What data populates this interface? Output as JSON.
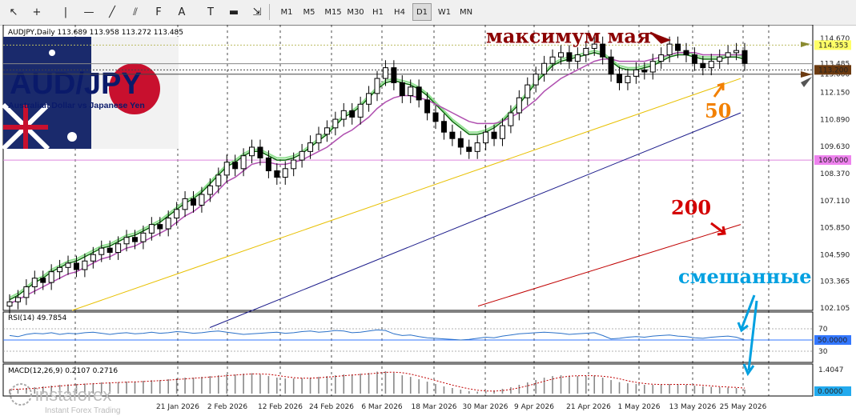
{
  "toolbar": {
    "tools": [
      "cursor-icon",
      "crosshair-icon",
      "vertical-line-icon",
      "horizontal-line-icon",
      "trendline-icon",
      "channel-icon",
      "fibonacci-icon",
      "text-icon",
      "text-label-icon",
      "rectangle-icon",
      "arrows-icon"
    ],
    "text_tool": "A",
    "label_tool": "T",
    "timeframes": [
      "M1",
      "M5",
      "M15",
      "M30",
      "H1",
      "H4",
      "D1",
      "W1",
      "MN"
    ],
    "active_timeframe": "D1"
  },
  "chart_data": {
    "type": "candlestick",
    "symbol_header": "AUDJPY,Daily  113.689 113.958 113.272 113.485",
    "logo": {
      "title": "AUD/JPY",
      "subtitle": "Australian Dollar vs Japanese Yen"
    },
    "price_axis": {
      "ticks": [
        "114.670",
        "113.485",
        "113.200",
        "113.000",
        "112.150",
        "110.890",
        "109.630",
        "109.000",
        "108.370",
        "107.110",
        "105.850",
        "104.590",
        "103.365",
        "102.105"
      ],
      "ylim": [
        102.0,
        115.0
      ],
      "highlighted": [
        {
          "label": "114.353",
          "value": 114.353,
          "color": "#ffff66"
        },
        {
          "label": "113.200",
          "value": 113.2,
          "color": "#6b3a10"
        },
        {
          "label": "109.000",
          "value": 109.0,
          "color": "#ee82ee"
        }
      ]
    },
    "date_axis": [
      "21 Jan 2026",
      "2 Feb 2026",
      "12 Feb 2026",
      "24 Feb 2026",
      "6 Mar 2026",
      "18 Mar 2026",
      "30 Mar 2026",
      "9 Apr 2026",
      "21 Apr 2026",
      "1 May 2026",
      "13 May 2026",
      "25 May 2026"
    ],
    "horizontal_levels": [
      {
        "value": 114.353,
        "color": "#bcbc60",
        "style": "dotted"
      },
      {
        "value": 113.485,
        "color": "#888888",
        "style": "solid"
      },
      {
        "value": 113.2,
        "color": "#444444",
        "style": "dotted"
      },
      {
        "value": 113.0,
        "color": "#444444",
        "style": "solid"
      },
      {
        "value": 109.0,
        "color": "#dd88dd",
        "style": "solid"
      }
    ],
    "series": [
      {
        "name": "close",
        "kind": "candles",
        "values": [
          102.4,
          102.6,
          103.1,
          103.5,
          103.3,
          103.8,
          104.0,
          104.2,
          103.9,
          104.3,
          104.6,
          104.9,
          104.7,
          105.1,
          105.4,
          105.2,
          105.6,
          106.0,
          105.8,
          106.3,
          106.7,
          107.2,
          106.9,
          107.4,
          107.8,
          108.3,
          108.9,
          108.6,
          109.2,
          109.6,
          109.1,
          108.5,
          108.2,
          108.6,
          109.0,
          109.4,
          109.8,
          110.2,
          110.5,
          110.9,
          111.3,
          111.0,
          111.6,
          112.1,
          112.8,
          113.3,
          112.6,
          112.0,
          112.4,
          111.8,
          111.2,
          110.8,
          110.3,
          110.0,
          109.6,
          109.4,
          109.8,
          110.3,
          110.0,
          110.6,
          111.2,
          111.9,
          112.5,
          113.0,
          113.5,
          113.8,
          114.0,
          113.6,
          113.9,
          114.2,
          114.4,
          113.8,
          113.0,
          112.6,
          112.9,
          113.2,
          113.1,
          113.6,
          113.9,
          114.4,
          114.1,
          113.9,
          113.5,
          113.3,
          113.6,
          113.8,
          114.0,
          114.1,
          113.5
        ]
      },
      {
        "name": "ema_fast",
        "kind": "line",
        "color": "#0a6b0a",
        "values": [
          102.5,
          102.7,
          103.0,
          103.3,
          103.5,
          103.8,
          104.0,
          104.2,
          104.3,
          104.5,
          104.7,
          104.9,
          105.0,
          105.2,
          105.4,
          105.5,
          105.7,
          105.9,
          106.1,
          106.4,
          106.7,
          107.0,
          107.2,
          107.5,
          107.9,
          108.3,
          108.7,
          108.9,
          109.2,
          109.4,
          109.4,
          109.2,
          109.0,
          109.0,
          109.1,
          109.3,
          109.6,
          109.9,
          110.2,
          110.6,
          111.0,
          111.2,
          111.5,
          111.9,
          112.3,
          112.6,
          112.7,
          112.6,
          112.5,
          112.3,
          112.0,
          111.6,
          111.2,
          110.8,
          110.5,
          110.2,
          110.2,
          110.3,
          110.5,
          110.8,
          111.2,
          111.6,
          112.1,
          112.6,
          113.0,
          113.4,
          113.6,
          113.7,
          113.8,
          113.9,
          114.0,
          113.9,
          113.6,
          113.3,
          113.2,
          113.2,
          113.3,
          113.4,
          113.6,
          113.8,
          113.9,
          113.9,
          113.8,
          113.7,
          113.7,
          113.7,
          113.8,
          113.8,
          113.7
        ]
      },
      {
        "name": "ema_light",
        "kind": "line",
        "color": "#90e090",
        "values": [
          102.6,
          102.8,
          103.1,
          103.4,
          103.6,
          103.9,
          104.1,
          104.3,
          104.4,
          104.6,
          104.8,
          105.0,
          105.1,
          105.3,
          105.5,
          105.6,
          105.8,
          106.0,
          106.2,
          106.5,
          106.8,
          107.1,
          107.3,
          107.6,
          108.0,
          108.4,
          108.8,
          109.0,
          109.3,
          109.5,
          109.5,
          109.3,
          109.1,
          109.1,
          109.2,
          109.4,
          109.7,
          110.0,
          110.3,
          110.7,
          111.1,
          111.3,
          111.6,
          112.0,
          112.4,
          112.7,
          112.8,
          112.7,
          112.6,
          112.4,
          112.1,
          111.7,
          111.3,
          110.9,
          110.6,
          110.3,
          110.3,
          110.4,
          110.6,
          110.9,
          111.3,
          111.7,
          112.2,
          112.7,
          113.1,
          113.5,
          113.7,
          113.8,
          113.9,
          114.0,
          114.1,
          114.0,
          113.7,
          113.4,
          113.3,
          113.3,
          113.4,
          113.5,
          113.7,
          113.9,
          114.0,
          114.0,
          113.9,
          113.8,
          113.8,
          113.8,
          113.9,
          113.9,
          113.8
        ]
      },
      {
        "name": "ema_purple",
        "kind": "line",
        "color": "#b050b0",
        "values": [
          102.3,
          102.5,
          102.7,
          102.9,
          103.1,
          103.3,
          103.5,
          103.7,
          103.8,
          104.0,
          104.2,
          104.4,
          104.5,
          104.7,
          104.9,
          105.0,
          105.2,
          105.4,
          105.6,
          105.8,
          106.1,
          106.4,
          106.6,
          106.9,
          107.2,
          107.6,
          108.0,
          108.2,
          108.5,
          108.8,
          108.9,
          108.9,
          108.8,
          108.8,
          108.9,
          109.0,
          109.2,
          109.4,
          109.6,
          109.9,
          110.2,
          110.4,
          110.7,
          111.0,
          111.4,
          111.7,
          111.9,
          112.0,
          112.0,
          111.9,
          111.8,
          111.6,
          111.4,
          111.2,
          111.0,
          110.8,
          110.7,
          110.7,
          110.7,
          110.8,
          111.0,
          111.2,
          111.5,
          111.8,
          112.2,
          112.5,
          112.8,
          113.0,
          113.2,
          113.4,
          113.6,
          113.7,
          113.7,
          113.6,
          113.6,
          113.6,
          113.6,
          113.7,
          113.8,
          113.9,
          114.0,
          114.0,
          114.0,
          113.9,
          113.9,
          113.9,
          113.9,
          113.9,
          113.9
        ]
      },
      {
        "name": "ma50",
        "kind": "line",
        "color": "#e8c000",
        "start": 102.0,
        "end": 112.8
      },
      {
        "name": "ma_blue",
        "kind": "line",
        "color": "#1a1a8a",
        "start": 101.2,
        "end": 111.2
      },
      {
        "name": "ma200",
        "kind": "line",
        "color": "#c00000",
        "start": 102.2,
        "end": 106.0
      }
    ],
    "rsi": {
      "label": "RSI(14) 49.7854",
      "value": 50.0,
      "value_label": "50.0000",
      "levels": [
        "70",
        "50",
        "30"
      ],
      "values": [
        58,
        56,
        60,
        62,
        61,
        63,
        60,
        62,
        61,
        63,
        64,
        62,
        60,
        62,
        63,
        61,
        62,
        64,
        62,
        63,
        65,
        64,
        62,
        63,
        65,
        66,
        64,
        62,
        60,
        61,
        62,
        63,
        64,
        62,
        63,
        65,
        66,
        64,
        65,
        67,
        66,
        63,
        64,
        66,
        68,
        67,
        61,
        58,
        59,
        56,
        54,
        53,
        52,
        51,
        50,
        51,
        53,
        55,
        54,
        57,
        59,
        61,
        62,
        63,
        64,
        63,
        62,
        60,
        61,
        62,
        63,
        58,
        52,
        53,
        55,
        56,
        55,
        57,
        58,
        59,
        57,
        56,
        54,
        53,
        55,
        56,
        57,
        55,
        50
      ]
    },
    "macd": {
      "label": "MACD(12,26,9) 0.2107 0.2716",
      "ticks": [
        "1.4047"
      ],
      "value_label": "0.0000",
      "hist": [
        0.25,
        0.3,
        0.35,
        0.4,
        0.45,
        0.5,
        0.55,
        0.58,
        0.6,
        0.63,
        0.66,
        0.7,
        0.7,
        0.72,
        0.75,
        0.76,
        0.8,
        0.84,
        0.85,
        0.9,
        0.95,
        1.0,
        1.0,
        1.05,
        1.1,
        1.15,
        1.2,
        1.2,
        1.25,
        1.28,
        1.2,
        1.1,
        1.0,
        0.95,
        0.95,
        0.98,
        1.0,
        1.05,
        1.1,
        1.15,
        1.2,
        1.2,
        1.25,
        1.3,
        1.38,
        1.4,
        1.3,
        1.15,
        1.05,
        0.9,
        0.75,
        0.6,
        0.45,
        0.35,
        0.25,
        0.15,
        0.12,
        0.15,
        0.2,
        0.3,
        0.4,
        0.55,
        0.7,
        0.85,
        1.0,
        1.1,
        1.15,
        1.12,
        1.1,
        1.12,
        1.14,
        1.0,
        0.85,
        0.72,
        0.65,
        0.6,
        0.55,
        0.55,
        0.58,
        0.6,
        0.58,
        0.55,
        0.5,
        0.45,
        0.42,
        0.4,
        0.38,
        0.35,
        0.25
      ]
    },
    "annotations": {
      "may_high": "максимум мая",
      "ma50": "50",
      "ma200": "200",
      "mixed": "смешанные"
    },
    "watermark": {
      "brand": "instaforex",
      "tagline": "Instant Forex Trading"
    }
  }
}
